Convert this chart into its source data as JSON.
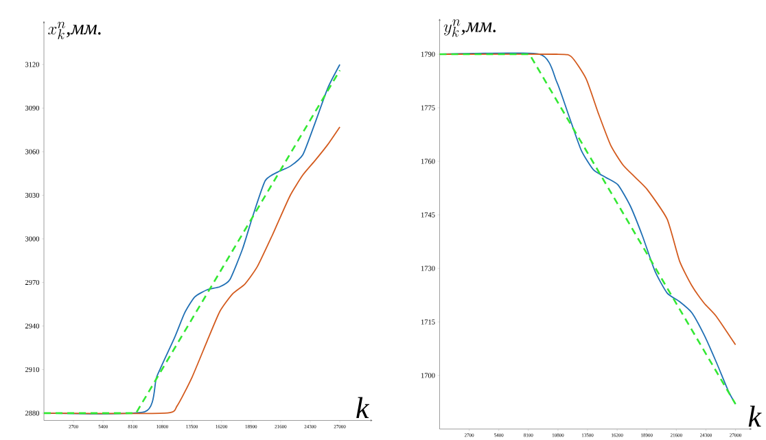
{
  "chart_data": [
    {
      "type": "line",
      "ylabel": "x_k^n\\mbox{\\itshape ,мм.}",
      "xlabel": "k",
      "xlim": [
        0,
        30000
      ],
      "ylim": [
        2875,
        3150
      ],
      "xticks": [
        2700,
        5400,
        8100,
        10800,
        13500,
        16200,
        18900,
        21600,
        24300,
        27000
      ],
      "yticks": [
        2880,
        2910,
        2940,
        2970,
        3000,
        3030,
        3060,
        3090,
        3120
      ],
      "grid": false,
      "marker": "none",
      "series": [
        {
          "color": "#1f6fb4",
          "line_style": "solid",
          "x": [
            0,
            9200,
            10290,
            11920,
            12840,
            13760,
            14910,
            16050,
            16970,
            18120,
            19030,
            20190,
            21340,
            22480,
            23630,
            24750,
            25910,
            27000
          ],
          "values": [
            2880,
            2881,
            2905,
            2932,
            2949,
            2960,
            2965,
            2967,
            2972,
            2993,
            3015,
            3040,
            3046,
            3050,
            3058,
            3080,
            3104,
            3120
          ]
        },
        {
          "color": "#d35a1d",
          "line_style": "solid",
          "x": [
            0,
            11000,
            12150,
            13530,
            14910,
            16050,
            17200,
            18350,
            19480,
            20870,
            21340,
            22480,
            23630,
            24750,
            25910,
            27000
          ],
          "values": [
            2880,
            2880,
            2885,
            2905,
            2930,
            2950,
            2962,
            2969,
            2981,
            3003,
            3011,
            3030,
            3044,
            3054,
            3065,
            3077
          ]
        },
        {
          "color": "#33e833",
          "line_style": "dashed",
          "x": [
            0,
            8400,
            27000
          ],
          "values": [
            2880,
            2880,
            3116
          ]
        }
      ]
    },
    {
      "type": "line",
      "ylabel": "y_k^n\\mbox{\\itshape ,мм.}",
      "xlabel": "k",
      "xlim": [
        0,
        28500
      ],
      "ylim": [
        1685,
        1800
      ],
      "xticks": [
        2700,
        5400,
        8100,
        10800,
        13500,
        16200,
        18900,
        21600,
        24300,
        27000
      ],
      "yticks": [
        1700,
        1715,
        1730,
        1745,
        1760,
        1775,
        1790
      ],
      "grid": false,
      "marker": "none",
      "series": [
        {
          "color": "#1f6fb4",
          "line_style": "solid",
          "x": [
            0,
            9100,
            10670,
            11800,
            12920,
            14040,
            15160,
            16280,
            17400,
            18520,
            19640,
            20760,
            21890,
            23010,
            24130,
            25240,
            26370,
            27000
          ],
          "values": [
            1790,
            1790,
            1782.4,
            1772.7,
            1763.1,
            1757.6,
            1755.5,
            1753.4,
            1747.5,
            1739,
            1729.3,
            1723.1,
            1720.7,
            1717.6,
            1711.4,
            1703.8,
            1695.5,
            1692
          ]
        },
        {
          "color": "#d35a1d",
          "line_style": "solid",
          "x": [
            0,
            10670,
            12020,
            13370,
            14490,
            15610,
            16730,
            17850,
            18970,
            20760,
            21890,
            23010,
            24130,
            25240,
            27000
          ],
          "values": [
            1790,
            1790,
            1789.3,
            1783.1,
            1773.4,
            1764.5,
            1759,
            1755.5,
            1752,
            1743.8,
            1732.1,
            1725.2,
            1720.3,
            1716.6,
            1708.6
          ]
        },
        {
          "color": "#33e833",
          "line_style": "dashed",
          "x": [
            0,
            8200,
            27000
          ],
          "values": [
            1790,
            1790,
            1692
          ]
        }
      ]
    }
  ]
}
